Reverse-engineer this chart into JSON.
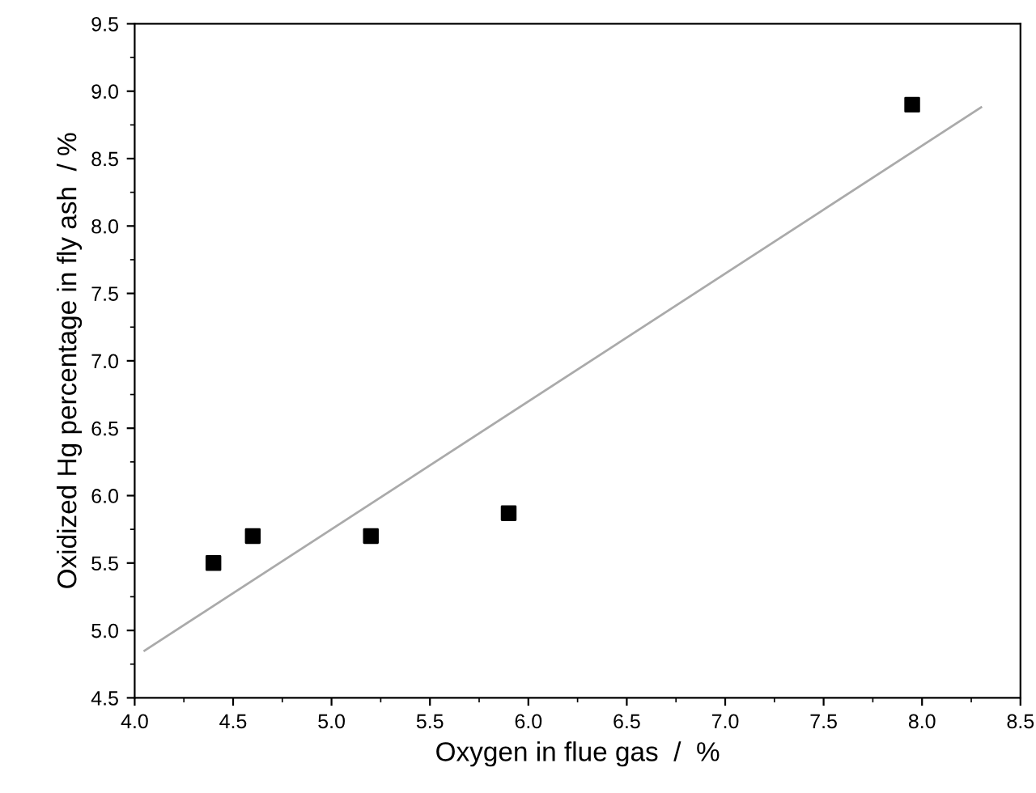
{
  "chart_data": {
    "type": "scatter",
    "xlabel": "Oxygen in flue gas  /  %",
    "ylabel": "Oxidized Hg percentage in fly ash  / %",
    "series": [
      {
        "color": "#000000",
        "marker": "square",
        "x": [
          4.4,
          4.6,
          5.2,
          5.9,
          7.95
        ],
        "values": [
          5.5,
          5.7,
          5.7,
          5.87,
          8.9
        ]
      },
      {
        "type": "line",
        "color": "#aaaaaa",
        "marker": "none",
        "line_style": "solid",
        "x": [
          4.05,
          8.3
        ],
        "values": [
          4.85,
          8.88
        ]
      }
    ],
    "xlim": [
      4.0,
      8.5
    ],
    "xticks": [
      {
        "value": 4.0,
        "label": "4.0"
      },
      4.5,
      {
        "value": 5.0,
        "label": "5.0"
      },
      5.5,
      {
        "value": 6.0,
        "label": "6.0"
      },
      6.5,
      {
        "value": 7.0,
        "label": "7.0"
      },
      7.5,
      {
        "value": 8.0,
        "label": "8.0"
      },
      8.5
    ],
    "ylim": [
      4.5,
      9.5
    ],
    "yticks": [
      4.5,
      {
        "value": 5.0,
        "label": "5.0"
      },
      5.5,
      {
        "value": 6.0,
        "label": "6.0"
      },
      6.5,
      {
        "value": 7.0,
        "label": "7.0"
      },
      7.5,
      {
        "value": 8.0,
        "label": "8.0"
      },
      8.5,
      {
        "value": 9.0,
        "label": "9.0"
      },
      9.5
    ],
    "grid": false,
    "legend": false
  }
}
